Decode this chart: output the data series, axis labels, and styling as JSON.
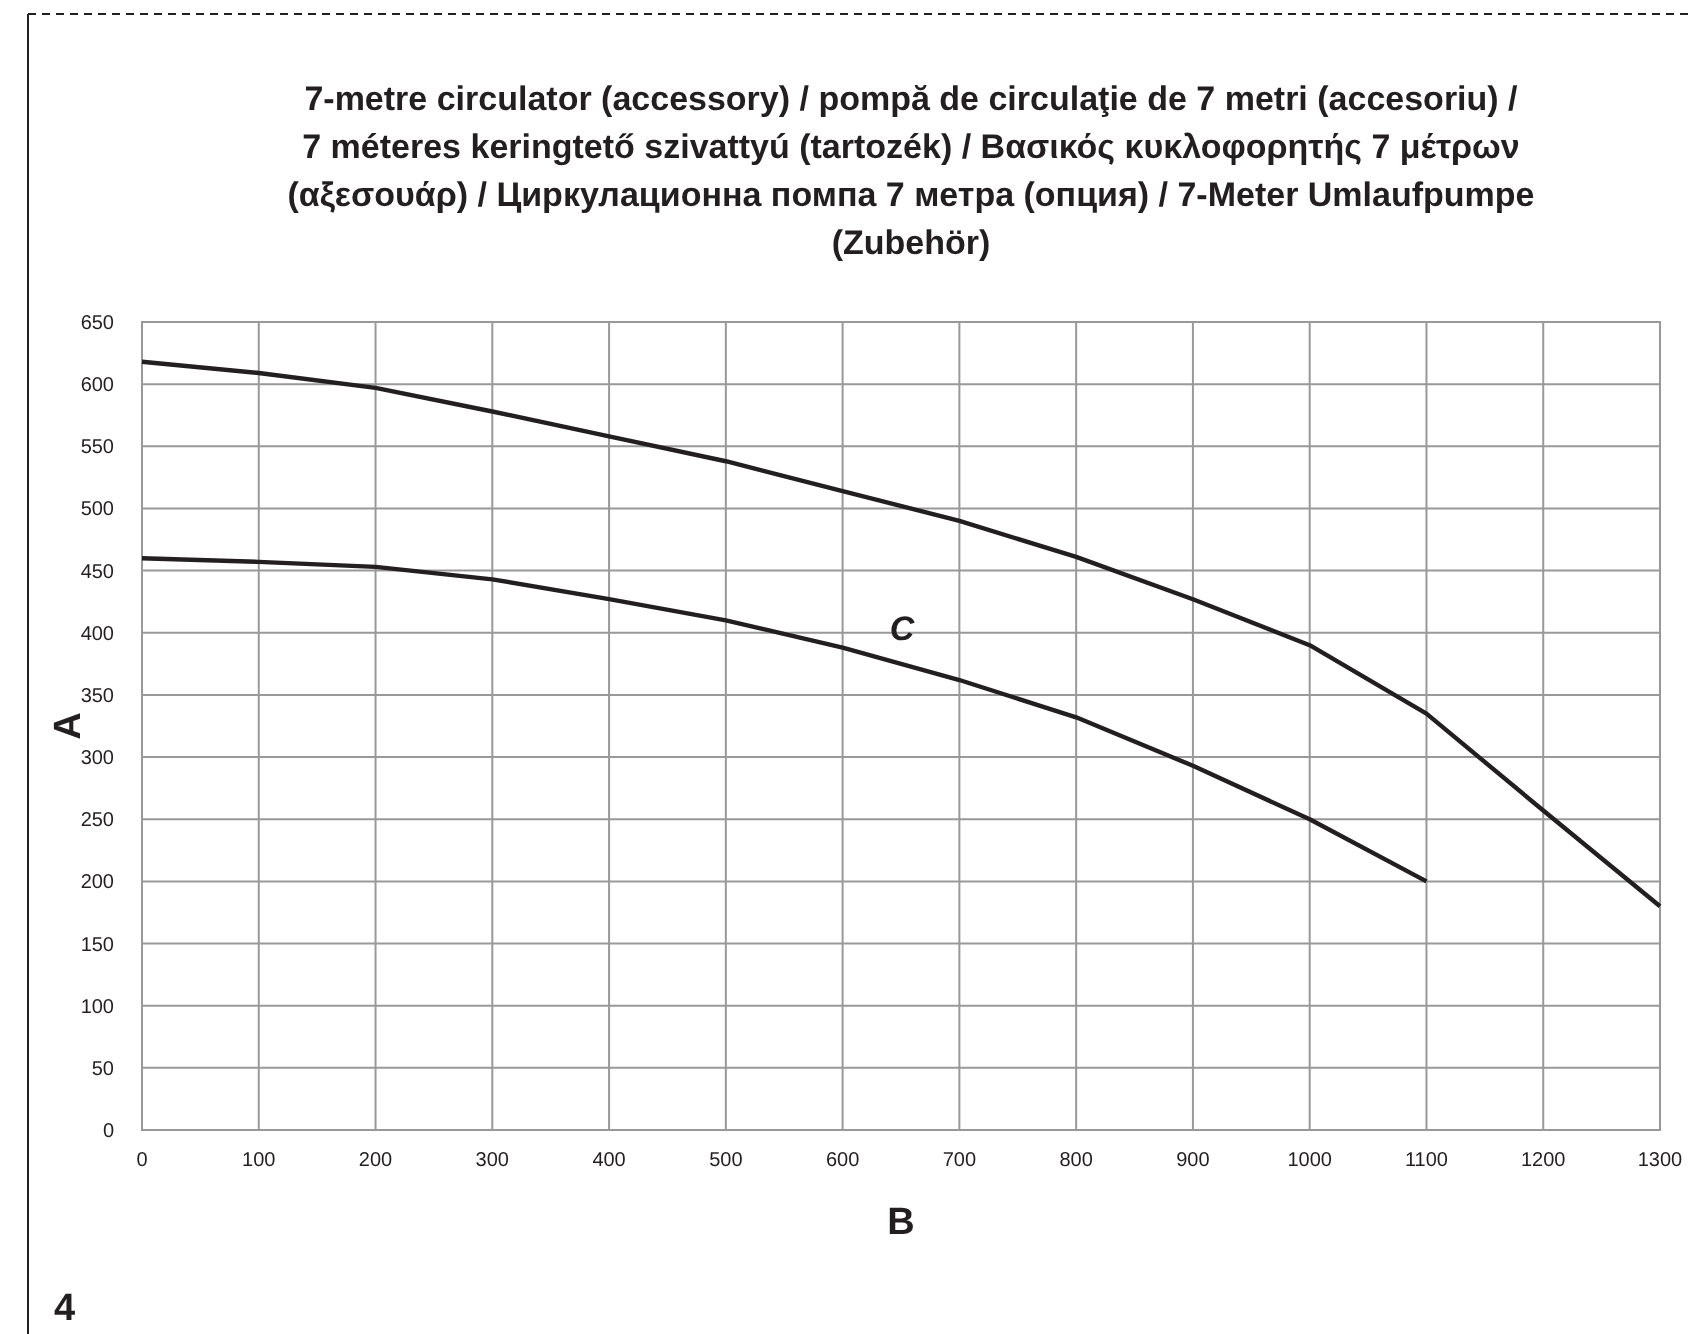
{
  "chart_data": {
    "type": "line",
    "title": "7-metre circulator (accessory) / pompă de circulaţie de 7 metri (accesoriu) / 7 méteres keringtető szivattyú (tartozék) / Βασικός κυκλοφορητής 7 μέτρων (αξεσουάρ) / Циркулационна помпа 7 метра (опция) / 7-Meter Umlaufpumpe (Zubehör)",
    "xlabel": "B",
    "ylabel": "A",
    "x": [
      0,
      100,
      200,
      300,
      400,
      500,
      600,
      700,
      800,
      900,
      1000,
      1100,
      1200,
      1300
    ],
    "series": [
      {
        "color": "#231f20",
        "values": [
          618,
          609,
          597,
          578,
          558,
          538,
          514,
          490,
          461,
          427,
          390,
          335,
          257,
          180
        ]
      },
      {
        "color": "#231f20",
        "x": [
          0,
          100,
          200,
          300,
          400,
          500,
          600,
          700,
          800,
          900,
          1000,
          1100
        ],
        "values": [
          460,
          457,
          453,
          443,
          427,
          410,
          388,
          362,
          332,
          293,
          250,
          200
        ]
      }
    ],
    "xlim": [
      0,
      1300
    ],
    "xticks": [
      0,
      100,
      200,
      300,
      400,
      500,
      600,
      700,
      800,
      900,
      1000,
      1100,
      1200,
      1300
    ],
    "ylim": [
      0,
      650
    ],
    "yticks": [
      0,
      50,
      100,
      150,
      200,
      250,
      300,
      350,
      400,
      450,
      500,
      550,
      600,
      650
    ],
    "grid": true,
    "marker": "none",
    "line_style": "solid",
    "annotations": [
      "C",
      "4"
    ]
  }
}
